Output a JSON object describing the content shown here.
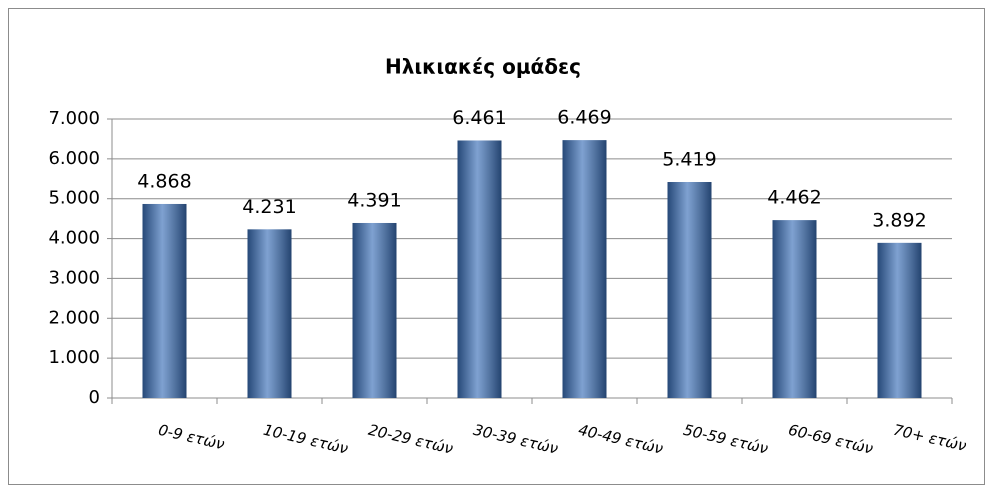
{
  "chart_data": {
    "type": "bar",
    "title": "Ηλικιακές ομάδες",
    "categories": [
      "0-9  ετών",
      "10-19 ετών",
      "20-29 ετών",
      "30-39 ετών",
      "40-49 ετών",
      "50-59 ετών",
      "60-69 ετών",
      "70+ ετών"
    ],
    "values": [
      4868,
      4231,
      4391,
      6461,
      6469,
      5419,
      4462,
      3892
    ],
    "value_labels": [
      "4.868",
      "4.231",
      "4.391",
      "6.461",
      "6.469",
      "5.419",
      "4.462",
      "3.892"
    ],
    "color": "#3a6fb8",
    "ylim": [
      0,
      7000
    ],
    "yticks": [
      0,
      {
        "value": 1000,
        "label": "1.000"
      },
      {
        "value": 2000,
        "label": "2.000"
      },
      {
        "value": 3000,
        "label": "3.000"
      },
      {
        "value": 4000,
        "label": "4.000"
      },
      {
        "value": 5000,
        "label": "5.000"
      },
      {
        "value": 6000,
        "label": "6.000"
      },
      {
        "value": 7000,
        "label": "7.000"
      }
    ],
    "grid": true
  }
}
